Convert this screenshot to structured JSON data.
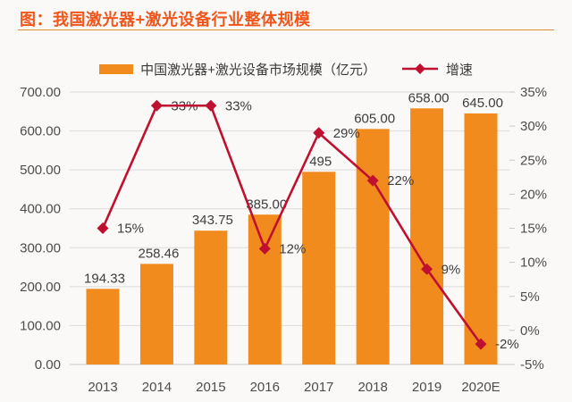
{
  "page": {
    "title": "图：我国激光器+激光设备行业整体规模"
  },
  "legend": {
    "series1": "中国激光器+激光设备市场规模（亿元）",
    "series2": "增速"
  },
  "colors": {
    "bar": "#F28B1D",
    "line": "#C01030",
    "title_accent": "#F0561C",
    "divider": "#DD8F33",
    "grid": "#DCDCDC",
    "axis_line": "#C8C8C8",
    "axis_text": "#4D4D4D",
    "data_label_text": "#3D3D3D",
    "background": "#FAF9F7"
  },
  "chart_data": {
    "type": "bar",
    "subtype": "combo-bar-line-dual-axis",
    "title": "图：我国激光器+激光设备行业整体规模",
    "categories": [
      "2013",
      "2014",
      "2015",
      "2016",
      "2017",
      "2018",
      "2019",
      "2020E"
    ],
    "series": [
      {
        "name": "中国激光器+激光设备市场规模（亿元）",
        "type": "bar",
        "axis": "left",
        "values": [
          194.33,
          258.46,
          343.75,
          385.0,
          495,
          605.0,
          658.0,
          645.0
        ],
        "labels": [
          "194.33",
          "258.46",
          "343.75",
          "385.00",
          "495",
          "605.00",
          "658.00",
          "645.00"
        ]
      },
      {
        "name": "增速",
        "type": "line",
        "axis": "right",
        "marker": "diamond",
        "values": [
          15,
          33,
          33,
          12,
          29,
          22,
          9,
          -2
        ],
        "labels": [
          "15%",
          "33%",
          "33%",
          "12%",
          "29%",
          "22%",
          "9%",
          "-2%"
        ]
      }
    ],
    "left_axis": {
      "min": 0,
      "max": 700,
      "step": 100,
      "tick_labels": [
        "0.00",
        "100.00",
        "200.00",
        "300.00",
        "400.00",
        "500.00",
        "600.00",
        "700.00"
      ]
    },
    "right_axis": {
      "min": -5,
      "max": 35,
      "step": 5,
      "tick_labels": [
        "-5%",
        "0%",
        "5%",
        "10%",
        "15%",
        "20%",
        "25%",
        "30%",
        "35%"
      ]
    },
    "grid": "horizontal gridlines at left-axis steps",
    "legend_position": "top-center"
  }
}
